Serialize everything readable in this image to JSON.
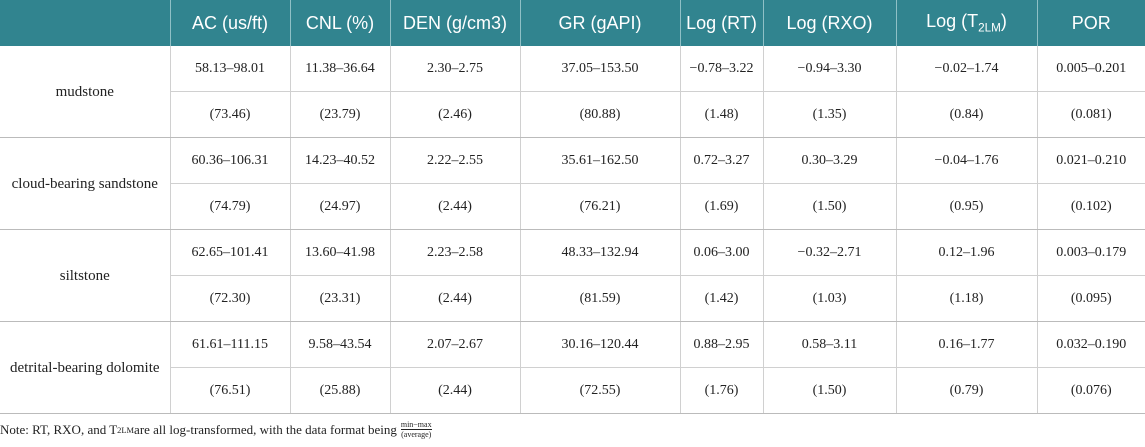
{
  "table": {
    "header": [
      {
        "text": ""
      },
      {
        "text": "AC (us/ft)"
      },
      {
        "text": "CNL (%)"
      },
      {
        "text": "DEN (g/cm3)"
      },
      {
        "text": "GR (gAPI)"
      },
      {
        "text": "Log (RT)"
      },
      {
        "text": "Log (RXO)"
      },
      {
        "text": "Log (T",
        "sub": "2LM",
        "tail": ")"
      },
      {
        "text": "POR"
      }
    ],
    "rows": [
      {
        "label": "mudstone",
        "range": [
          "58.13–98.01",
          "11.38–36.64",
          "2.30–2.75",
          "37.05–153.50",
          "−0.78–3.22",
          "−0.94–3.30",
          "−0.02–1.74",
          "0.005–0.201"
        ],
        "average": [
          "(73.46)",
          "(23.79)",
          "(2.46)",
          "(80.88)",
          "(1.48)",
          "(1.35)",
          "(0.84)",
          "(0.081)"
        ]
      },
      {
        "label": "cloud-bearing sandstone",
        "range": [
          "60.36–106.31",
          "14.23–40.52",
          "2.22–2.55",
          "35.61–162.50",
          "0.72–3.27",
          "0.30–3.29",
          "−0.04–1.76",
          "0.021–0.210"
        ],
        "average": [
          "(74.79)",
          "(24.97)",
          "(2.44)",
          "(76.21)",
          "(1.69)",
          "(1.50)",
          "(0.95)",
          "(0.102)"
        ]
      },
      {
        "label": "siltstone",
        "range": [
          "62.65–101.41",
          "13.60–41.98",
          "2.23–2.58",
          "48.33–132.94",
          "0.06–3.00",
          "−0.32–2.71",
          "0.12–1.96",
          "0.003–0.179"
        ],
        "average": [
          "(72.30)",
          "(23.31)",
          "(2.44)",
          "(81.59)",
          "(1.42)",
          "(1.03)",
          "(1.18)",
          "(0.095)"
        ]
      },
      {
        "label": "detrital-bearing dolomite",
        "range": [
          "61.61–111.15",
          "9.58–43.54",
          "2.07–2.67",
          "30.16–120.44",
          "0.88–2.95",
          "0.58–3.11",
          "0.16–1.77",
          "0.032–0.190"
        ],
        "average": [
          "(76.51)",
          "(25.88)",
          "(2.44)",
          "(72.55)",
          "(1.76)",
          "(1.50)",
          "(0.79)",
          "(0.076)"
        ]
      }
    ]
  },
  "note": {
    "text": "Note: RT, RXO, and T",
    "sub": "2LM",
    "tail": " are all log-transformed, with the data format being",
    "numerator": "min−max",
    "denominator": "(average)"
  }
}
